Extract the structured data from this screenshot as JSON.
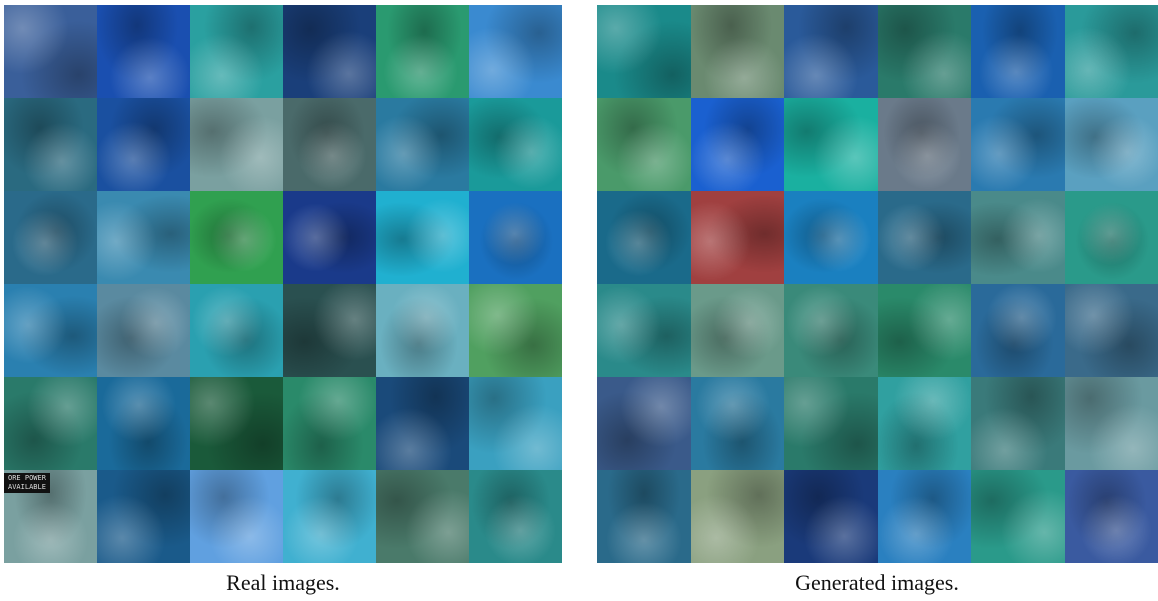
{
  "panels": [
    {
      "caption": "Real images.",
      "sign_text": [
        "ORE POWER",
        "AVAILABLE"
      ]
    },
    {
      "caption": "Generated images."
    }
  ]
}
